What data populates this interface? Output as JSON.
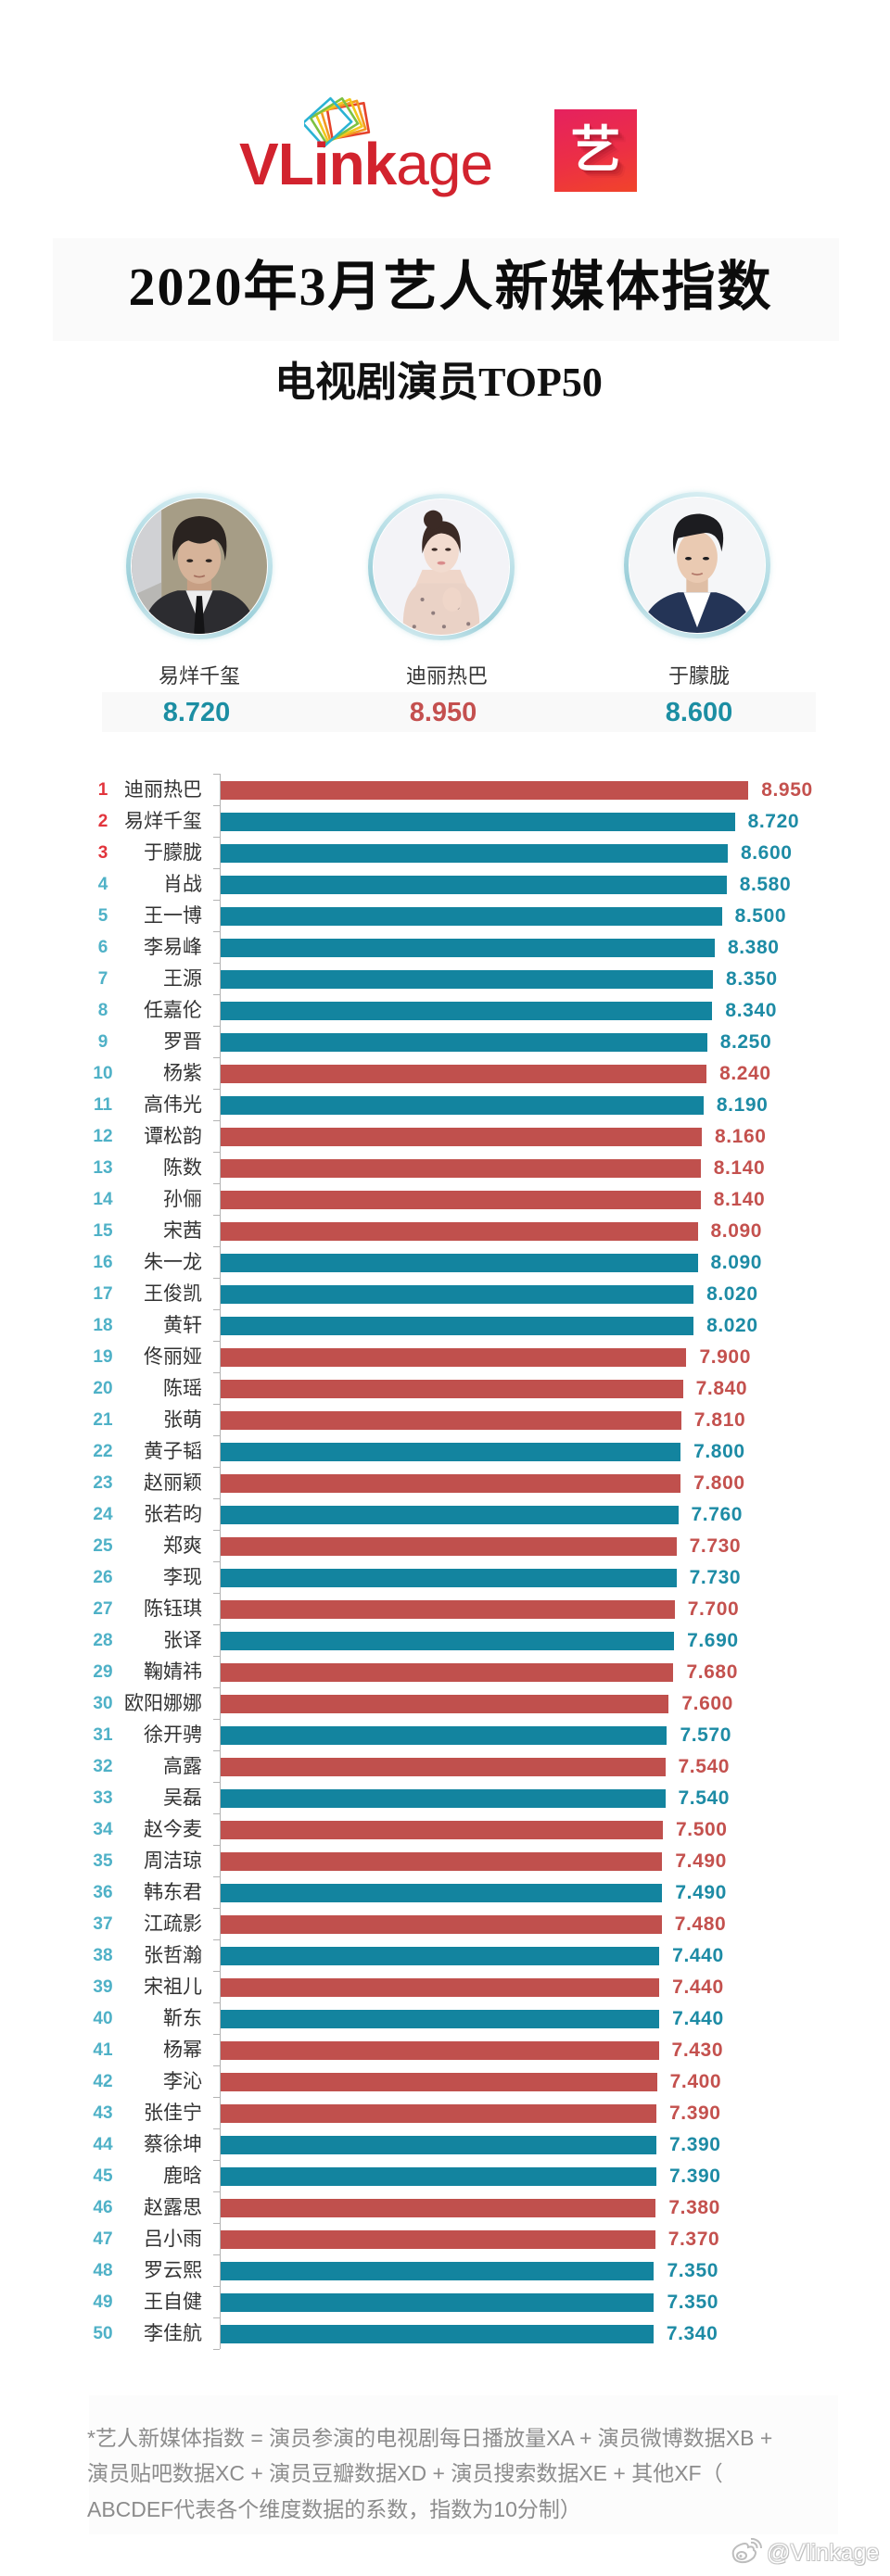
{
  "brand": {
    "name_bold": "VLink",
    "name_light": "age",
    "badge_char": "艺"
  },
  "header": {
    "title": "2020年3月艺人新媒体指数",
    "subtitle": "电视剧演员TOP50"
  },
  "top3": [
    {
      "name": "易烊千玺",
      "value": "8.720",
      "color": "#1c8ea3"
    },
    {
      "name": "迪丽热巴",
      "value": "8.950",
      "color": "#c4504f"
    },
    {
      "name": "于朦胧",
      "value": "8.600",
      "color": "#1c8ea3"
    }
  ],
  "styles": {
    "rank_top3": "#e2343c",
    "rank_other": "#4fb1c7"
  },
  "chart_data": {
    "type": "bar",
    "orientation": "horizontal",
    "title": "电视剧演员TOP50",
    "xlabel": "",
    "ylabel": "",
    "x_axis_start": 0,
    "grid": false,
    "legend": null,
    "ranks": [
      "1",
      "2",
      "3",
      "4",
      "5",
      "6",
      "7",
      "8",
      "9",
      "10",
      "11",
      "12",
      "13",
      "14",
      "15",
      "16",
      "17",
      "18",
      "19",
      "20",
      "21",
      "22",
      "23",
      "24",
      "25",
      "26",
      "27",
      "28",
      "29",
      "30",
      "31",
      "32",
      "33",
      "34",
      "35",
      "36",
      "37",
      "38",
      "39",
      "40",
      "41",
      "42",
      "43",
      "44",
      "45",
      "46",
      "47",
      "48",
      "49",
      "50"
    ],
    "categories": [
      "迪丽热巴",
      "易烊千玺",
      "于朦胧",
      "肖战",
      "王一博",
      "李易峰",
      "王源",
      "任嘉伦",
      "罗晋",
      "杨紫",
      "高伟光",
      "谭松韵",
      "陈数",
      "孙俪",
      "宋茜",
      "朱一龙",
      "王俊凯",
      "黄轩",
      "佟丽娅",
      "陈瑶",
      "张萌",
      "黄子韬",
      "赵丽颖",
      "张若昀",
      "郑爽",
      "李现",
      "陈钰琪",
      "张译",
      "鞠婧祎",
      "欧阳娜娜",
      "徐开骋",
      "高露",
      "吴磊",
      "赵今麦",
      "周洁琼",
      "韩东君",
      "江疏影",
      "张哲瀚",
      "宋祖儿",
      "靳东",
      "杨幂",
      "李沁",
      "张佳宁",
      "蔡徐坤",
      "鹿晗",
      "赵露思",
      "吕小雨",
      "罗云熙",
      "王自健",
      "李佳航"
    ],
    "values": [
      8.95,
      8.72,
      8.6,
      8.58,
      8.5,
      8.38,
      8.35,
      8.34,
      8.25,
      8.24,
      8.19,
      8.16,
      8.14,
      8.14,
      8.09,
      8.09,
      8.02,
      8.02,
      7.9,
      7.84,
      7.81,
      7.8,
      7.8,
      7.76,
      7.73,
      7.73,
      7.7,
      7.69,
      7.68,
      7.6,
      7.57,
      7.54,
      7.54,
      7.5,
      7.49,
      7.49,
      7.48,
      7.44,
      7.44,
      7.44,
      7.43,
      7.4,
      7.39,
      7.39,
      7.39,
      7.38,
      7.37,
      7.35,
      7.35,
      7.34
    ],
    "labels": [
      "8.950",
      "8.720",
      "8.600",
      "8.580",
      "8.500",
      "8.380",
      "8.350",
      "8.340",
      "8.250",
      "8.240",
      "8.190",
      "8.160",
      "8.140",
      "8.140",
      "8.090",
      "8.090",
      "8.020",
      "8.020",
      "7.900",
      "7.840",
      "7.810",
      "7.800",
      "7.800",
      "7.760",
      "7.730",
      "7.730",
      "7.700",
      "7.690",
      "7.680",
      "7.600",
      "7.570",
      "7.540",
      "7.540",
      "7.500",
      "7.490",
      "7.490",
      "7.480",
      "7.440",
      "7.440",
      "7.440",
      "7.430",
      "7.400",
      "7.390",
      "7.390",
      "7.390",
      "7.380",
      "7.370",
      "7.350",
      "7.350",
      "7.340"
    ],
    "bar_colors": [
      "red",
      "teal",
      "teal",
      "teal",
      "teal",
      "teal",
      "teal",
      "teal",
      "teal",
      "red",
      "teal",
      "red",
      "red",
      "red",
      "red",
      "teal",
      "teal",
      "teal",
      "red",
      "red",
      "red",
      "teal",
      "red",
      "teal",
      "red",
      "teal",
      "red",
      "teal",
      "red",
      "red",
      "teal",
      "red",
      "teal",
      "red",
      "red",
      "teal",
      "red",
      "teal",
      "red",
      "teal",
      "red",
      "red",
      "red",
      "teal",
      "teal",
      "red",
      "red",
      "teal",
      "teal",
      "teal"
    ],
    "palette": {
      "red": "#c0504d",
      "teal": "#13849f"
    },
    "label_palette": {
      "red": "#c4514e",
      "teal": "#1d8ba5"
    }
  },
  "footnote": {
    "lines": [
      "*艺人新媒体指数 = 演员参演的电视剧每日播放量XA + 演员微博数据XB +",
      "演员贴吧数据XC + 演员豆瓣数据XD + 演员搜索数据XE + 其他XF（",
      "ABCDEF代表各个维度数据的系数，指数为10分制）"
    ]
  },
  "watermark": {
    "text": "@Vlinkage"
  }
}
